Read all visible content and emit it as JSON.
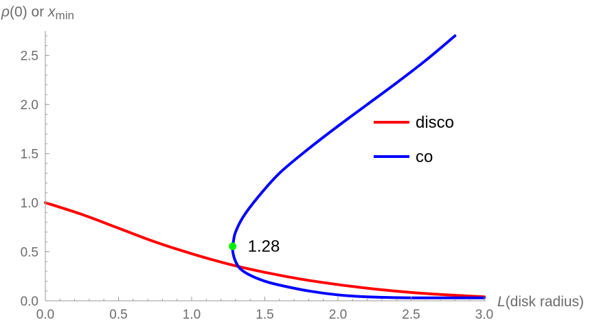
{
  "chart_data": {
    "type": "line",
    "title": "",
    "xlabel_italic": "L",
    "xlabel_rest": "(disk radius)",
    "ylabel_greek": "ρ",
    "ylabel_mid": "(0) or ",
    "ylabel_var": "x",
    "ylabel_sub": "min",
    "xlim": [
      0,
      3.0
    ],
    "ylim": [
      0,
      2.75
    ],
    "x_ticks": [
      0.0,
      0.5,
      1.0,
      1.5,
      2.0,
      2.5,
      3.0
    ],
    "x_tick_labels": [
      "0.0",
      "0.5",
      "1.0",
      "1.5",
      "2.0",
      "2.5",
      "3.0"
    ],
    "y_ticks": [
      0.0,
      0.5,
      1.0,
      1.5,
      2.0,
      2.5
    ],
    "y_tick_labels": [
      "0.0",
      "0.5",
      "1.0",
      "1.5",
      "2.0",
      "2.5"
    ],
    "grid": false,
    "legend_position": "right",
    "series": [
      {
        "name": "disco",
        "color": "#ff0000",
        "points": [
          [
            0.0,
            1.0
          ],
          [
            0.25,
            0.88
          ],
          [
            0.5,
            0.74
          ],
          [
            0.75,
            0.6
          ],
          [
            1.0,
            0.48
          ],
          [
            1.25,
            0.375
          ],
          [
            1.5,
            0.29
          ],
          [
            1.75,
            0.22
          ],
          [
            2.0,
            0.165
          ],
          [
            2.25,
            0.12
          ],
          [
            2.5,
            0.085
          ],
          [
            2.75,
            0.06
          ],
          [
            3.0,
            0.04
          ]
        ]
      },
      {
        "name": "co",
        "color": "#0000ff",
        "points": [
          [
            3.0,
            0.03
          ],
          [
            2.5,
            0.03
          ],
          [
            2.2,
            0.04
          ],
          [
            2.0,
            0.06
          ],
          [
            1.8,
            0.1
          ],
          [
            1.6,
            0.16
          ],
          [
            1.5,
            0.2
          ],
          [
            1.4,
            0.26
          ],
          [
            1.33,
            0.33
          ],
          [
            1.295,
            0.42
          ],
          [
            1.28,
            0.52
          ],
          [
            1.285,
            0.6
          ],
          [
            1.3,
            0.7
          ],
          [
            1.35,
            0.85
          ],
          [
            1.45,
            1.05
          ],
          [
            1.6,
            1.3
          ],
          [
            1.8,
            1.55
          ],
          [
            2.0,
            1.78
          ],
          [
            2.2,
            2.0
          ],
          [
            2.4,
            2.22
          ],
          [
            2.6,
            2.45
          ],
          [
            2.8,
            2.7
          ]
        ]
      }
    ],
    "annotation": {
      "x": 1.28,
      "y": 0.555,
      "label": "1.28",
      "color": "#00ee00"
    }
  }
}
